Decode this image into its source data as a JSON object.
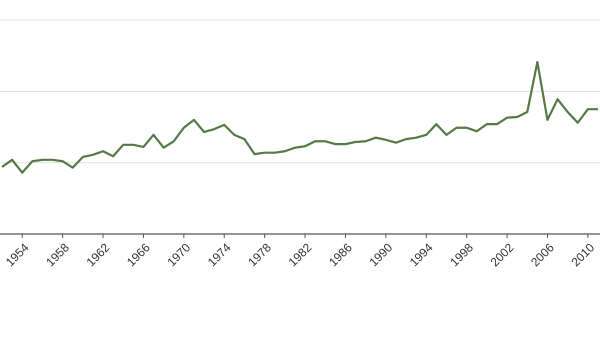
{
  "chart_data": {
    "type": "line",
    "x": [
      1952,
      1953,
      1954,
      1955,
      1956,
      1957,
      1958,
      1959,
      1960,
      1961,
      1962,
      1963,
      1964,
      1965,
      1966,
      1967,
      1968,
      1969,
      1970,
      1971,
      1972,
      1973,
      1974,
      1975,
      1976,
      1977,
      1978,
      1979,
      1980,
      1981,
      1982,
      1983,
      1984,
      1985,
      1986,
      1987,
      1988,
      1989,
      1990,
      1991,
      1992,
      1993,
      1994,
      1995,
      1996,
      1997,
      1998,
      1999,
      2000,
      2001,
      2002,
      2003,
      2004,
      2005,
      2006,
      2007,
      2008,
      2009,
      2010,
      2011
    ],
    "series": [
      {
        "color": "#557a46",
        "values": [
          0.94,
          1.04,
          0.86,
          1.02,
          1.04,
          1.04,
          1.02,
          0.93,
          1.08,
          1.11,
          1.16,
          1.09,
          1.25,
          1.25,
          1.22,
          1.39,
          1.21,
          1.3,
          1.49,
          1.6,
          1.43,
          1.47,
          1.53,
          1.39,
          1.33,
          1.12,
          1.14,
          1.14,
          1.16,
          1.21,
          1.23,
          1.3,
          1.3,
          1.26,
          1.26,
          1.29,
          1.3,
          1.35,
          1.32,
          1.28,
          1.33,
          1.35,
          1.39,
          1.54,
          1.39,
          1.49,
          1.49,
          1.44,
          1.54,
          1.54,
          1.63,
          1.64,
          1.71,
          2.41,
          1.6,
          1.89,
          1.71,
          1.56,
          1.75,
          1.75
        ]
      }
    ],
    "xlim": [
      1951.8,
      2011.2
    ],
    "xticks": [
      1954,
      1958,
      1962,
      1966,
      1970,
      1974,
      1978,
      1982,
      1986,
      1990,
      1994,
      1998,
      2002,
      2006,
      2010
    ],
    "ylim": [
      0,
      3
    ],
    "yticks": [
      0,
      1,
      2,
      3
    ],
    "grid": true
  }
}
